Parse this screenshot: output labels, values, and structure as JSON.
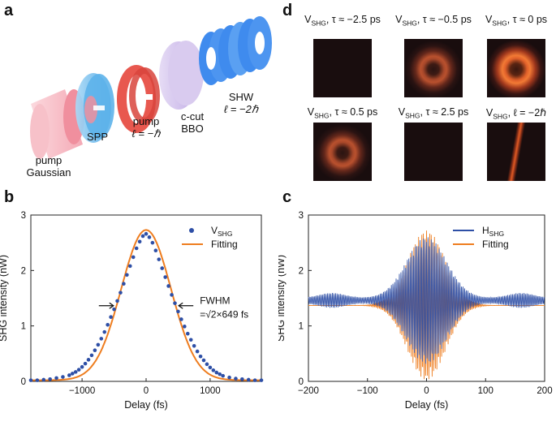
{
  "panel_labels": {
    "a": "a",
    "b": "b",
    "c": "c",
    "d": "d"
  },
  "panel_a": {
    "pump_gaussian": [
      "pump",
      "Gaussian"
    ],
    "spp": "SPP",
    "pump_l": [
      "pump",
      "ℓ = −ℏ"
    ],
    "bbo": [
      "c-cut",
      "BBO"
    ],
    "shw": [
      "SHW",
      "ℓ = −2ℏ"
    ],
    "colors": {
      "gaussian": "#f6b3bd",
      "spp": "#7ec3ef",
      "pump_l": "#e8584f",
      "bbo": "#d4c3ec",
      "shw": "#3f8bee"
    }
  },
  "panel_d": {
    "images": [
      {
        "var": "V",
        "sub": "SHG",
        "rest": ", τ ≈ −2.5 ps",
        "ring": "none"
      },
      {
        "var": "V",
        "sub": "SHG",
        "rest": ", τ ≈ −0.5 ps",
        "ring": "medium"
      },
      {
        "var": "V",
        "sub": "SHG",
        "rest": ", τ ≈ 0 ps",
        "ring": "bright"
      },
      {
        "var": "V",
        "sub": "SHG",
        "rest": ", τ ≈ 0.5 ps",
        "ring": "medium"
      },
      {
        "var": "V",
        "sub": "SHG",
        "rest": ", τ ≈ 2.5 ps",
        "ring": "none"
      },
      {
        "var": "V",
        "sub": "SHG",
        "rest": ", ℓ = −2ℏ",
        "ring": "line"
      }
    ]
  },
  "chart_data": [
    {
      "id": "b",
      "type": "scatter+line",
      "xlabel": "Delay (fs)",
      "ylabel": "SHG intensity (nW)",
      "xlim": [
        -1800,
        1800
      ],
      "ylim": [
        0,
        3
      ],
      "xticks": [
        -1000,
        0,
        1000
      ],
      "xtick_labels": [
        "−1000",
        "0",
        "1000"
      ],
      "yticks": [
        0,
        1,
        2,
        3
      ],
      "legend": [
        {
          "name": "V",
          "sub": "SHG",
          "style": "dots",
          "color": "#2e4fa6"
        },
        {
          "name": "Fitting",
          "sub": "",
          "style": "line",
          "color": "#ee7d1f"
        }
      ],
      "legend_position": "top-right",
      "annotation": {
        "lines": [
          "FWHM",
          "=√2×649 fs"
        ]
      },
      "fit": {
        "peak": 2.73,
        "fwhm_fs": 918,
        "baseline": 0.02
      },
      "measured_points": {
        "x": [
          -1800,
          -1700,
          -1600,
          -1500,
          -1400,
          -1300,
          -1200,
          -1150,
          -1100,
          -1050,
          -1000,
          -950,
          -900,
          -850,
          -800,
          -750,
          -700,
          -650,
          -600,
          -550,
          -500,
          -450,
          -400,
          -350,
          -300,
          -250,
          -200,
          -150,
          -100,
          -50,
          0,
          50,
          100,
          150,
          200,
          250,
          300,
          350,
          400,
          450,
          500,
          550,
          600,
          650,
          700,
          750,
          800,
          850,
          900,
          950,
          1000,
          1050,
          1100,
          1150,
          1200,
          1300,
          1400,
          1500,
          1600,
          1700,
          1800
        ],
        "y": [
          0.02,
          0.02,
          0.03,
          0.04,
          0.06,
          0.08,
          0.11,
          0.14,
          0.17,
          0.21,
          0.26,
          0.32,
          0.39,
          0.47,
          0.56,
          0.66,
          0.77,
          0.89,
          1.02,
          1.16,
          1.3,
          1.45,
          1.6,
          1.76,
          1.92,
          2.08,
          2.24,
          2.4,
          2.52,
          2.62,
          2.66,
          2.6,
          2.5,
          2.36,
          2.2,
          2.04,
          1.88,
          1.72,
          1.56,
          1.41,
          1.26,
          1.12,
          0.99,
          0.86,
          0.75,
          0.64,
          0.54,
          0.45,
          0.38,
          0.31,
          0.25,
          0.2,
          0.16,
          0.13,
          0.1,
          0.07,
          0.05,
          0.04,
          0.03,
          0.02,
          0.02
        ]
      }
    },
    {
      "id": "c",
      "type": "line",
      "xlabel": "Delay (fs)",
      "ylabel": "SHG intensity (nW)",
      "xlim": [
        -200,
        200
      ],
      "ylim": [
        0,
        3
      ],
      "xticks": [
        -200,
        -100,
        0,
        100,
        200
      ],
      "xtick_labels": [
        "−200",
        "−100",
        "0",
        "100",
        "200"
      ],
      "yticks": [
        0,
        1,
        2,
        3
      ],
      "legend": [
        {
          "name": "H",
          "sub": "SHG",
          "style": "line",
          "color": "#2e4fa6"
        },
        {
          "name": "Fitting",
          "sub": "",
          "style": "line",
          "color": "#ee7d1f"
        }
      ],
      "legend_position": "top-right",
      "fit": {
        "baseline": 1.37,
        "envelope_amplitude": 1.35,
        "envelope_sigma_fs": 32,
        "fringe_period_fs": 2.7
      },
      "measured": {
        "baseline": 1.46,
        "envelope_amplitude": 1.1,
        "envelope_sigma_fs": 34,
        "fringe_period_fs": 2.7,
        "side_bumps_fs": [
          -160,
          160
        ],
        "side_bump_amplitude": 0.09
      }
    }
  ]
}
